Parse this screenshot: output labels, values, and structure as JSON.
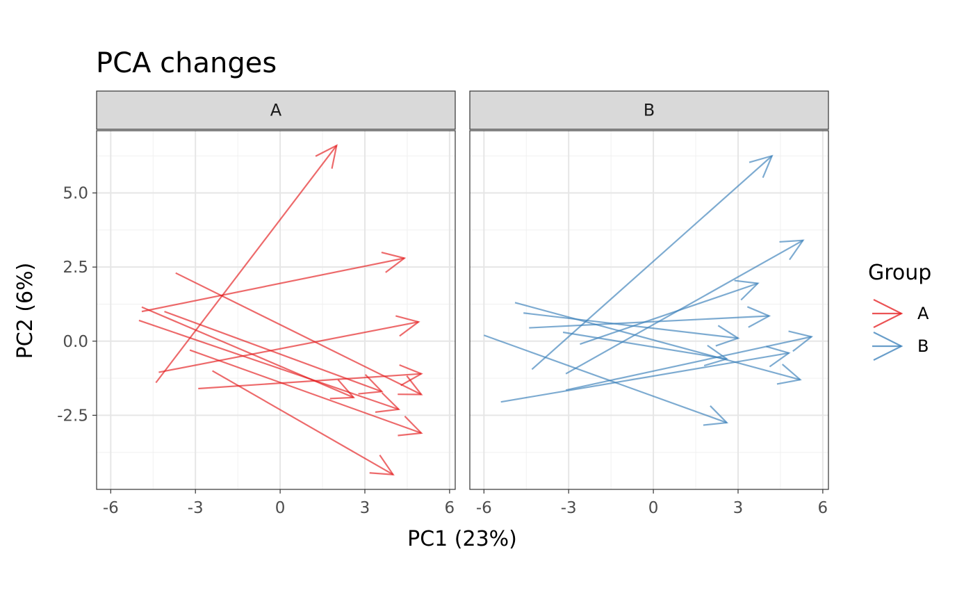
{
  "chart_data": {
    "type": "arrow",
    "title": "PCA changes",
    "xlabel": "PC1 (23%)",
    "ylabel": "PC2 (6%)",
    "xlim": [
      -6.5,
      6.2
    ],
    "ylim": [
      -5.0,
      7.1
    ],
    "x_ticks": [
      -6,
      -3,
      0,
      3,
      6
    ],
    "x_tick_labels": [
      "-6",
      "-3",
      "0",
      "3",
      "6"
    ],
    "y_ticks": [
      5.0,
      2.5,
      0.0,
      -2.5
    ],
    "y_tick_labels": [
      "5.0",
      "2.5",
      "0.0",
      "-2.5"
    ],
    "grid": true,
    "legend": {
      "title": "Group",
      "position": "right",
      "entries": [
        "A",
        "B"
      ]
    },
    "colors": {
      "A": "#E41A1C",
      "B": "#377EB8"
    },
    "facets": [
      {
        "label": "A",
        "group": "A",
        "arrows": [
          {
            "x0": -4.4,
            "y0": -1.4,
            "x1": 2.0,
            "y1": 6.6
          },
          {
            "x0": -4.9,
            "y0": 1.0,
            "x1": 4.4,
            "y1": 2.8
          },
          {
            "x0": -4.3,
            "y0": -1.05,
            "x1": 4.9,
            "y1": 0.65
          },
          {
            "x0": -2.9,
            "y0": -1.6,
            "x1": 5.0,
            "y1": -1.1
          },
          {
            "x0": -3.7,
            "y0": 2.3,
            "x1": 5.0,
            "y1": -1.8
          },
          {
            "x0": -4.9,
            "y0": 1.15,
            "x1": 2.6,
            "y1": -1.9
          },
          {
            "x0": -4.1,
            "y0": 1.0,
            "x1": 3.6,
            "y1": -1.7
          },
          {
            "x0": -5.0,
            "y0": 0.7,
            "x1": 4.2,
            "y1": -2.3
          },
          {
            "x0": -3.2,
            "y0": -0.3,
            "x1": 5.0,
            "y1": -3.1
          },
          {
            "x0": -2.4,
            "y0": -1.0,
            "x1": 4.0,
            "y1": -4.5
          }
        ]
      },
      {
        "label": "B",
        "group": "B",
        "arrows": [
          {
            "x0": -4.3,
            "y0": -0.95,
            "x1": 4.2,
            "y1": 6.25
          },
          {
            "x0": -3.1,
            "y0": -1.1,
            "x1": 5.3,
            "y1": 3.4
          },
          {
            "x0": -4.4,
            "y0": 0.45,
            "x1": 4.1,
            "y1": 0.85
          },
          {
            "x0": -2.6,
            "y0": -0.1,
            "x1": 3.7,
            "y1": 1.95
          },
          {
            "x0": -4.6,
            "y0": 0.95,
            "x1": 3.0,
            "y1": 0.1
          },
          {
            "x0": -6.0,
            "y0": 0.2,
            "x1": 2.6,
            "y1": -2.75
          },
          {
            "x0": -3.2,
            "y0": 0.3,
            "x1": 2.6,
            "y1": -0.6
          },
          {
            "x0": -4.9,
            "y0": 1.3,
            "x1": 5.2,
            "y1": -1.3
          },
          {
            "x0": -3.1,
            "y0": -1.65,
            "x1": 5.6,
            "y1": 0.15
          },
          {
            "x0": -5.4,
            "y0": -2.05,
            "x1": 4.8,
            "y1": -0.4
          }
        ]
      }
    ]
  }
}
